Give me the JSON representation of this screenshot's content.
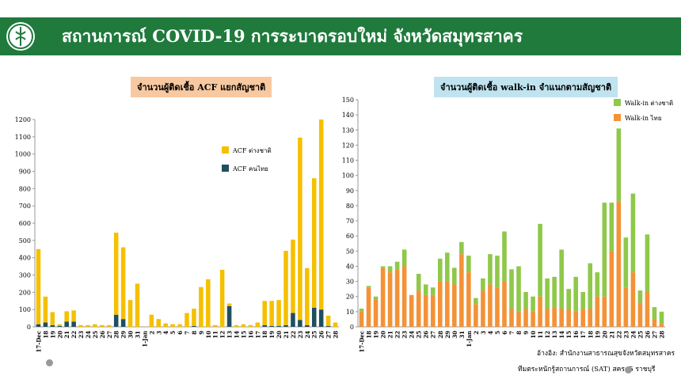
{
  "header": {
    "title": "สถานการณ์ COVID-19 การระบาดรอบใหม่ จังหวัดสมุทรสาคร"
  },
  "colors": {
    "header_bg": "#1f7a3c",
    "acf_foreign": "#f5c000",
    "acf_thai": "#1f4e5f",
    "walkin_foreign": "#8fc84a",
    "walkin_thai": "#f39237"
  },
  "chart_data": [
    {
      "type": "bar",
      "stacked": true,
      "title": "จำนวนผู้ติดเชื้อ ACF แยกสัญชาติ",
      "categories": [
        "17-Dec",
        "18",
        "19",
        "20",
        "21",
        "22",
        "23",
        "24",
        "25",
        "26",
        "27",
        "28",
        "29",
        "30",
        "31",
        "1-Jan",
        "2",
        "3",
        "4",
        "5",
        "6",
        "7",
        "8",
        "9",
        "10",
        "11",
        "12",
        "13",
        "14",
        "15",
        "16",
        "17",
        "18",
        "19",
        "20",
        "21",
        "22",
        "23",
        "24",
        "25",
        "26",
        "27",
        "28"
      ],
      "ylim": [
        0,
        1200
      ],
      "yticks": [
        0,
        100,
        200,
        300,
        400,
        500,
        600,
        700,
        800,
        900,
        1000,
        1100,
        1200
      ],
      "legend_position": "right-middle",
      "series": [
        {
          "name": "ACF คนไทย",
          "color": "#1f4e5f",
          "values": [
            15,
            25,
            10,
            5,
            30,
            30,
            0,
            0,
            0,
            0,
            0,
            70,
            45,
            0,
            0,
            0,
            0,
            0,
            0,
            0,
            0,
            0,
            5,
            0,
            0,
            0,
            0,
            120,
            0,
            0,
            0,
            0,
            10,
            5,
            5,
            10,
            80,
            40,
            10,
            110,
            100,
            5,
            0
          ]
        },
        {
          "name": "ACF ต่างชาติ",
          "color": "#f5c000",
          "values": [
            435,
            150,
            75,
            10,
            60,
            65,
            10,
            10,
            15,
            10,
            10,
            475,
            415,
            155,
            250,
            0,
            70,
            45,
            20,
            15,
            15,
            80,
            100,
            230,
            275,
            10,
            330,
            15,
            10,
            15,
            10,
            25,
            140,
            145,
            150,
            430,
            425,
            1055,
            330,
            750,
            1100,
            60,
            25
          ]
        }
      ]
    },
    {
      "type": "bar",
      "stacked": true,
      "title": "จำนวนผู้ติดเชื้อ walk-in จำแนกตามสัญชาติ",
      "categories": [
        "17-Dec",
        "18",
        "19",
        "20",
        "21",
        "22",
        "23",
        "24",
        "25",
        "26",
        "27",
        "28",
        "29",
        "30",
        "31",
        "1-Jan",
        "2",
        "3",
        "4",
        "5",
        "6",
        "7",
        "8",
        "9",
        "10",
        "11",
        "12",
        "13",
        "14",
        "15",
        "16",
        "17",
        "18",
        "19",
        "20",
        "21",
        "22",
        "23",
        "24",
        "25",
        "26",
        "27",
        "28"
      ],
      "ylim": [
        0,
        150
      ],
      "yticks": [
        0,
        10,
        20,
        30,
        40,
        50,
        60,
        70,
        80,
        90,
        100,
        110,
        120,
        130,
        140,
        150
      ],
      "legend_position": "top-right",
      "series": [
        {
          "name": "Walk-in ไทย",
          "color": "#f39237",
          "values": [
            10,
            26,
            18,
            39,
            36,
            38,
            40,
            21,
            24,
            21,
            21,
            30,
            30,
            28,
            48,
            36,
            15,
            24,
            28,
            26,
            30,
            12,
            10,
            12,
            10,
            20,
            12,
            13,
            12,
            12,
            10,
            12,
            12,
            20,
            20,
            50,
            83,
            26,
            36,
            16,
            23,
            5,
            2
          ]
        },
        {
          "name": "Walk-in ต่างชาติ",
          "color": "#8fc84a",
          "values": [
            2,
            1,
            2,
            1,
            4,
            5,
            11,
            0,
            11,
            7,
            5,
            15,
            19,
            11,
            8,
            11,
            4,
            8,
            20,
            21,
            33,
            26,
            30,
            11,
            10,
            48,
            20,
            20,
            39,
            13,
            23,
            11,
            30,
            16,
            62,
            32,
            48,
            33,
            52,
            8,
            38,
            8,
            8
          ]
        }
      ]
    }
  ],
  "source": {
    "line1": "อ้างอิง: สำนักงานสาธารณสุขจังหวัดสมุทรสาคร",
    "line2": "ทีมตระหนักรู้สถานการณ์ (SAT) สคร. 5 ราชบุรี"
  }
}
